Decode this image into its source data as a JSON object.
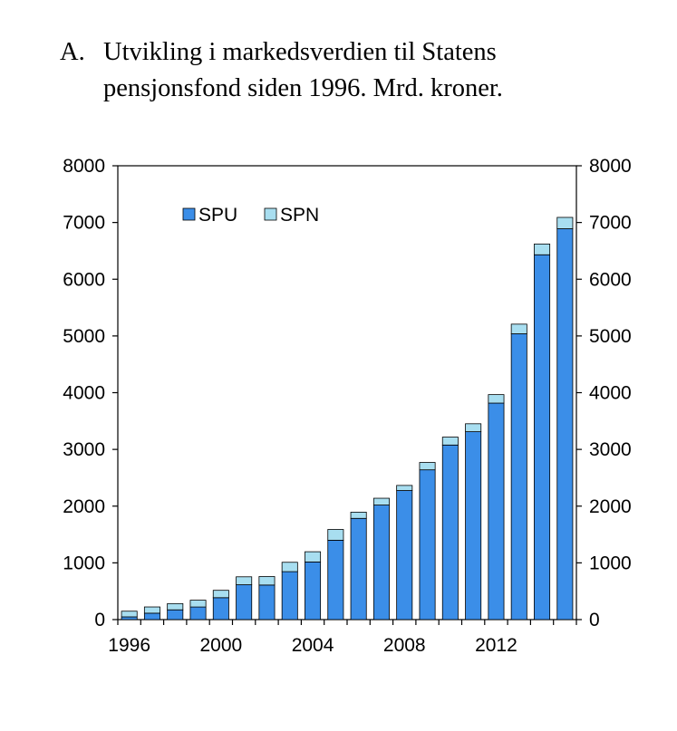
{
  "figure": {
    "label": "A.",
    "title_line1": "Utvikling i markedsverdien til Statens",
    "title_line2": "pensjonsfond siden 1996. Mrd. kroner."
  },
  "colors": {
    "spu": "#3b8ee8",
    "spn": "#a8def0",
    "axis": "#000000"
  },
  "chart_data": {
    "type": "bar",
    "stacked": true,
    "title": "Utvikling i markedsverdien til Statens pensjonsfond siden 1996. Mrd. kroner.",
    "xlabel": "",
    "ylabel": "",
    "x": [
      1996,
      1997,
      1998,
      1999,
      2000,
      2001,
      2002,
      2003,
      2004,
      2005,
      2006,
      2007,
      2008,
      2009,
      2010,
      2011,
      2012,
      2013,
      2014,
      2015
    ],
    "x_tick_labels": [
      "1996",
      "2000",
      "2004",
      "2008",
      "2012"
    ],
    "series": [
      {
        "name": "SPU",
        "values": [
          48,
          113,
          172,
          222,
          386,
          614,
          609,
          845,
          1016,
          1399,
          1784,
          2019,
          2275,
          2640,
          3077,
          3312,
          3816,
          5038,
          6431,
          6890
        ]
      },
      {
        "name": "SPN",
        "values": [
          100,
          110,
          110,
          120,
          130,
          140,
          150,
          165,
          180,
          190,
          110,
          120,
          90,
          130,
          140,
          140,
          150,
          170,
          190,
          200
        ]
      }
    ],
    "ylim": [
      0,
      8000
    ],
    "y_ticks": [
      0,
      1000,
      2000,
      3000,
      4000,
      5000,
      6000,
      7000,
      8000
    ],
    "secondary_y_axis": true,
    "grid": false,
    "legend": "top-left"
  }
}
